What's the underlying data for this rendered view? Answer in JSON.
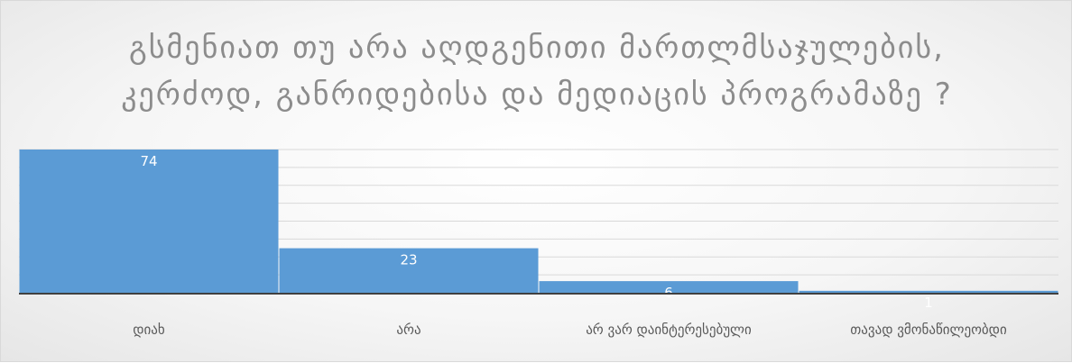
{
  "chart_data": {
    "type": "bar",
    "title": "გსმენიათ თუ არა აღდგენითი მართლმსაჯულების,\nკერძოდ, განრიდებისა და მედიაცის პროგრამაზე ?",
    "categories": [
      "დიახ",
      "არა",
      "არ ვარ დაინტერესებული",
      "თავად ვმონაწილეობდი"
    ],
    "values": [
      74,
      23,
      6,
      1
    ],
    "ylim": [
      0,
      74
    ],
    "grid": true,
    "legend": "none",
    "bar_color": "#5b9bd5",
    "gridline_color": "#d9d9d9",
    "baseline_color": "#404040"
  }
}
